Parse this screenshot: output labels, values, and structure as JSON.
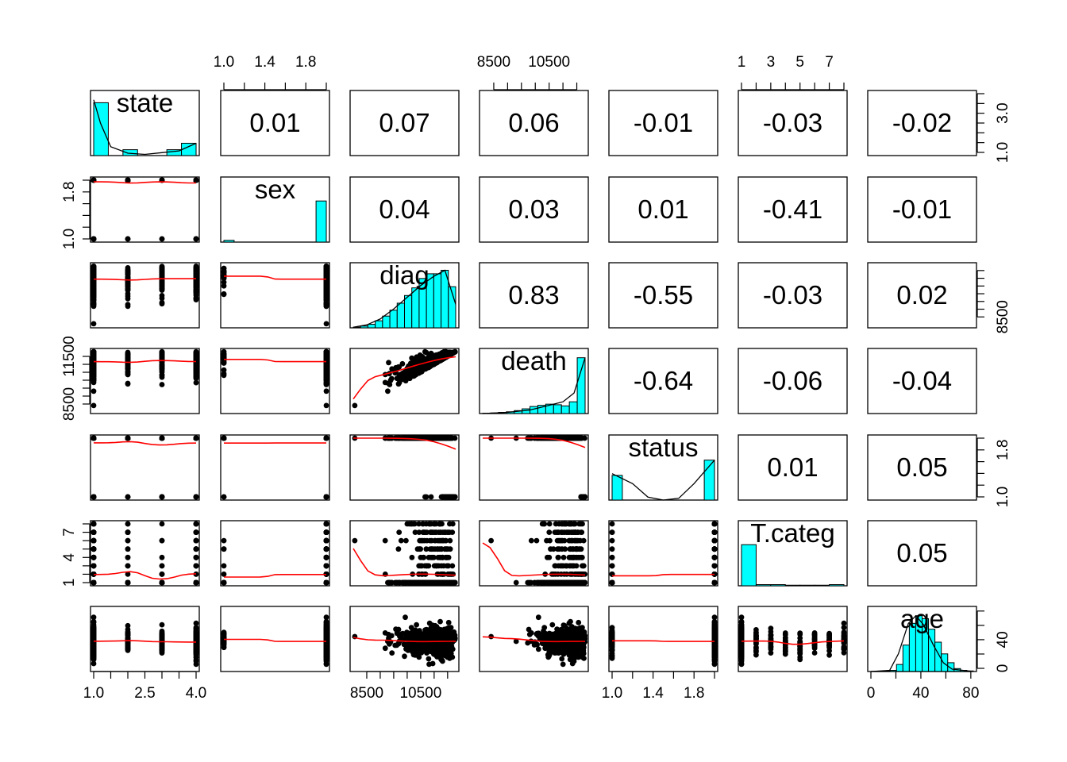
{
  "chart_data": {
    "type": "scatter-matrix",
    "title": "",
    "variables": [
      "state",
      "sex",
      "diag",
      "death",
      "status",
      "T.categ",
      "age"
    ],
    "ranges": {
      "state": [
        1,
        4
      ],
      "sex": [
        1,
        2
      ],
      "diag": [
        8000,
        11800
      ],
      "death": [
        8100,
        11800
      ],
      "status": [
        1,
        2
      ],
      "T.categ": [
        1,
        8
      ],
      "age": [
        0,
        82
      ]
    },
    "axes": {
      "bottom": [
        {
          "var": "state",
          "ticks": [
            1.0,
            1.5,
            2.0,
            2.5,
            3.0,
            3.5,
            4.0
          ],
          "labels": [
            "1.0",
            "2.5",
            "4.0"
          ]
        },
        {
          "var": "diag",
          "ticks": [
            8500,
            9000,
            9500,
            10000,
            10500,
            11000,
            11500
          ],
          "labels": [
            "8500",
            "10500"
          ]
        },
        {
          "var": "status",
          "ticks": [
            1.0,
            1.2,
            1.4,
            1.6,
            1.8,
            2.0
          ],
          "labels": [
            "1.0",
            "1.4",
            "1.8"
          ]
        },
        {
          "var": "age",
          "ticks": [
            0,
            20,
            40,
            60,
            80
          ],
          "labels": [
            "0",
            "40",
            "80"
          ]
        }
      ],
      "top": [
        {
          "var": "sex",
          "ticks": [
            1.0,
            1.2,
            1.4,
            1.6,
            1.8,
            2.0
          ],
          "labels": [
            "1.0",
            "1.4",
            "1.8"
          ]
        },
        {
          "var": "death",
          "ticks": [
            8500,
            9000,
            9500,
            10000,
            10500,
            11000,
            11500
          ],
          "labels": [
            "8500",
            "10500"
          ]
        },
        {
          "var": "T.categ",
          "ticks": [
            1,
            2,
            3,
            4,
            5,
            6,
            7,
            8
          ],
          "labels": [
            "1",
            "3",
            "5",
            "7"
          ]
        }
      ],
      "left": [
        {
          "var": "sex",
          "ticks": [
            1.0,
            1.2,
            1.4,
            1.6,
            1.8,
            2.0
          ],
          "labels": [
            "1.0",
            "1.8"
          ]
        },
        {
          "var": "death",
          "ticks": [
            8500,
            9000,
            9500,
            10000,
            10500,
            11000,
            11500
          ],
          "labels": [
            "8500",
            "11500"
          ]
        },
        {
          "var": "T.categ",
          "ticks": [
            1,
            2,
            3,
            4,
            5,
            6,
            7,
            8
          ],
          "labels": [
            "1",
            "4",
            "7"
          ]
        }
      ],
      "right": [
        {
          "var": "state",
          "ticks": [
            1.0,
            1.5,
            2.0,
            2.5,
            3.0,
            3.5,
            4.0
          ],
          "labels": [
            "1.0",
            "3.0"
          ]
        },
        {
          "var": "diag",
          "ticks": [
            8500,
            9000,
            9500,
            10000,
            10500,
            11000,
            11500
          ],
          "labels": [
            "8500"
          ]
        },
        {
          "var": "status",
          "ticks": [
            1.0,
            1.2,
            1.4,
            1.6,
            1.8,
            2.0
          ],
          "labels": [
            "1.0",
            "1.8"
          ]
        },
        {
          "var": "age",
          "ticks": [
            0,
            20,
            40,
            60,
            80
          ],
          "labels": [
            "0",
            "40"
          ]
        }
      ]
    },
    "correlations": {
      "0-1": "0.01",
      "0-2": "0.07",
      "0-3": "0.06",
      "0-4": "-0.01",
      "0-5": "-0.03",
      "0-6": "-0.02",
      "1-2": "0.04",
      "1-3": "0.03",
      "1-4": "0.01",
      "1-5": "-0.41",
      "1-6": "-0.01",
      "2-3": "0.83",
      "2-4": "-0.55",
      "2-5": "-0.03",
      "2-6": "0.02",
      "3-4": "-0.64",
      "3-5": "-0.06",
      "3-6": "-0.04",
      "4-5": "0.01",
      "4-6": "0.05",
      "5-6": "0.05"
    },
    "histograms": {
      "state": {
        "breaks": [
          1,
          4
        ],
        "counts": [
          0.9,
          0,
          0.1,
          0,
          0,
          0.1,
          0.21
        ],
        "density": [
          [
            1,
            0.95
          ],
          [
            1.2,
            0.55
          ],
          [
            1.5,
            0.15
          ],
          [
            2,
            0.04
          ],
          [
            2.5,
            0.02
          ],
          [
            3,
            0.05
          ],
          [
            3.5,
            0.08
          ],
          [
            4,
            0.21
          ]
        ]
      },
      "sex": {
        "breaks": [
          1,
          2
        ],
        "counts": [
          0.03,
          0,
          0,
          0,
          0,
          0,
          0,
          0,
          0,
          0.7
        ],
        "density": []
      },
      "diag": {
        "breaks": [
          8000,
          11800
        ],
        "counts": [
          0.01,
          0.03,
          0.06,
          0.12,
          0.2,
          0.3,
          0.42,
          0.55,
          0.68,
          0.84,
          0.92,
          0.92,
          0.98,
          0.7
        ],
        "density": [
          [
            8000,
            0.01
          ],
          [
            8500,
            0.05
          ],
          [
            9000,
            0.15
          ],
          [
            9500,
            0.32
          ],
          [
            10000,
            0.52
          ],
          [
            10500,
            0.72
          ],
          [
            11000,
            0.88
          ],
          [
            11400,
            0.98
          ],
          [
            11800,
            0.4
          ]
        ]
      },
      "death": {
        "breaks": [
          8100,
          11800
        ],
        "counts": [
          0.005,
          0.01,
          0.02,
          0.03,
          0.05,
          0.08,
          0.12,
          0.14,
          0.16,
          0.15,
          0.13,
          0.2,
          0.95
        ],
        "density": [
          [
            8100,
            0.0
          ],
          [
            9000,
            0.02
          ],
          [
            9800,
            0.06
          ],
          [
            10500,
            0.14
          ],
          [
            11000,
            0.2
          ],
          [
            11400,
            0.35
          ],
          [
            11600,
            0.65
          ],
          [
            11800,
            0.95
          ]
        ]
      },
      "status": {
        "breaks": [
          1,
          2
        ],
        "counts": [
          0.42,
          0,
          0,
          0,
          0,
          0,
          0,
          0,
          0,
          0.68
        ],
        "density": [
          [
            1,
            0.45
          ],
          [
            1.2,
            0.28
          ],
          [
            1.35,
            0.05
          ],
          [
            1.5,
            0.0
          ],
          [
            1.65,
            0.03
          ],
          [
            1.8,
            0.28
          ],
          [
            2,
            0.68
          ]
        ]
      },
      "T.categ": {
        "breaks": [
          1,
          8
        ],
        "counts": [
          0.7,
          0.02,
          0.02,
          0.01,
          0.01,
          0.01,
          0.02
        ],
        "density": []
      },
      "age": {
        "breaks": [
          0,
          82
        ],
        "counts": [
          0,
          0,
          0.01,
          0.02,
          0.12,
          0.45,
          0.82,
          0.95,
          0.9,
          0.72,
          0.5,
          0.3,
          0.15,
          0.05,
          0.02,
          0.01
        ],
        "density": [
          [
            0,
            0
          ],
          [
            15,
            0.02
          ],
          [
            22,
            0.3
          ],
          [
            30,
            0.82
          ],
          [
            36,
            0.95
          ],
          [
            42,
            0.8
          ],
          [
            50,
            0.45
          ],
          [
            58,
            0.15
          ],
          [
            65,
            0.04
          ],
          [
            82,
            0
          ]
        ]
      }
    },
    "colors": {
      "hist_fill": "#00ffff",
      "smooth": "#ff0000",
      "points": "#000000"
    }
  }
}
